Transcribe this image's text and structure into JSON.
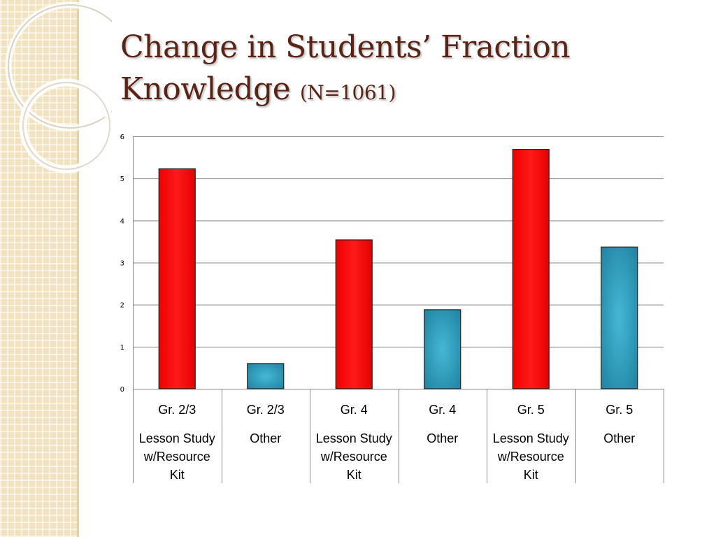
{
  "slide": {
    "title_main": "Change in Students’ Fraction Knowledge",
    "title_sub": "(N=1061)"
  },
  "colors": {
    "lesson_study": "#ff0000",
    "other": "#2b9bb8",
    "title": "#5a2415",
    "side_panel": "#f1e3bf"
  },
  "chart_data": {
    "type": "bar",
    "title": "",
    "xlabel": "",
    "ylabel": "",
    "ylim": [
      0,
      6
    ],
    "yticks": [
      0,
      1,
      2,
      3,
      4,
      5,
      6
    ],
    "grid": true,
    "categories": [
      {
        "grade": "Gr. 2/3",
        "group": "Lesson Study w/Resource Kit",
        "group_lines": [
          "Lesson Study",
          "w/Resource",
          "Kit"
        ],
        "value": 5.23,
        "color": "#ff0000"
      },
      {
        "grade": "Gr. 2/3",
        "group": "Other",
        "group_lines": [
          "Other"
        ],
        "value": 0.6,
        "color": "#2b9bb8"
      },
      {
        "grade": "Gr. 4",
        "group": "Lesson Study w/Resource Kit",
        "group_lines": [
          "Lesson Study",
          "w/Resource",
          "Kit"
        ],
        "value": 3.54,
        "color": "#ff0000"
      },
      {
        "grade": "Gr. 4",
        "group": "Other",
        "group_lines": [
          "Other"
        ],
        "value": 1.88,
        "color": "#2b9bb8"
      },
      {
        "grade": "Gr. 5",
        "group": "Lesson Study w/Resource Kit",
        "group_lines": [
          "Lesson Study",
          "w/Resource",
          "Kit"
        ],
        "value": 5.69,
        "color": "#ff0000"
      },
      {
        "grade": "Gr. 5",
        "group": "Other",
        "group_lines": [
          "Other"
        ],
        "value": 3.37,
        "color": "#2b9bb8"
      }
    ]
  }
}
